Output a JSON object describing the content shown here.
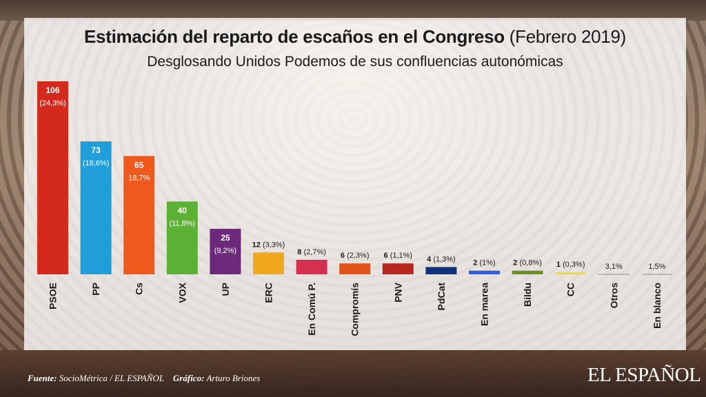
{
  "header": {
    "title_bold": "Estimación del reparto de escaños en el Congreso",
    "title_regular": "(Febrero 2019)",
    "subtitle": "Desglosando Unidos Podemos de sus confluencias autonómicas"
  },
  "footer": {
    "source_label": "Fuente:",
    "source_value": "SocioMétrica / EL ESPAÑOL",
    "graphic_label": "Gráfico:",
    "graphic_value": "Arturo Briones",
    "brand": "EL ESPAÑOL"
  },
  "chart_data": {
    "type": "bar",
    "title": "Estimación del reparto de escaños en el Congreso (Febrero 2019)",
    "subtitle": "Desglosando Unidos Podemos de sus confluencias autonómicas",
    "categories": [
      "PSOE",
      "PP",
      "Cs",
      "VOX",
      "UP",
      "ERC",
      "En Comú P.",
      "Compromís",
      "PNV",
      "PdCat",
      "En marea",
      "Bildu",
      "CC",
      "Otros",
      "En blanco"
    ],
    "values": [
      106,
      73,
      65,
      40,
      25,
      12,
      8,
      6,
      6,
      4,
      2,
      2,
      1,
      0,
      0
    ],
    "seat_labels": [
      "106",
      "73",
      "65",
      "40",
      "25",
      "12",
      "8",
      "6",
      "6",
      "4",
      "2",
      "2",
      "1",
      "",
      ""
    ],
    "pct_labels": [
      "(24,3%)",
      "(18,6%)",
      "18,7%",
      "(11,8%)",
      "(9,2%)",
      "(3,3%)",
      "(2,7%)",
      "(2,3%)",
      "(1,1%)",
      "(1,3%)",
      "(1%)",
      "(0,8%)",
      "(0,3%)",
      "3,1%",
      "1,5%"
    ],
    "colors": [
      "#d42a1e",
      "#1f9ed9",
      "#ef5a1c",
      "#5cb135",
      "#6e2a7a",
      "#f0a81c",
      "#d62f4f",
      "#e2531c",
      "#b8281e",
      "#12327e",
      "#2f5fe0",
      "#6e8f22",
      "#f0e21c",
      "#cccccc",
      "#aaaaaa"
    ],
    "label_colors": [
      "#ffffff",
      "#ffffff",
      "#ffffff",
      "#ffffff",
      "#ffffff",
      "#1a1a1a",
      "#1a1a1a",
      "#1a1a1a",
      "#1a1a1a",
      "#1a1a1a",
      "#1a1a1a",
      "#1a1a1a",
      "#1a1a1a",
      "#1a1a1a",
      "#1a1a1a"
    ],
    "ylim": [
      0,
      106
    ],
    "grid": false,
    "legend": "none"
  }
}
